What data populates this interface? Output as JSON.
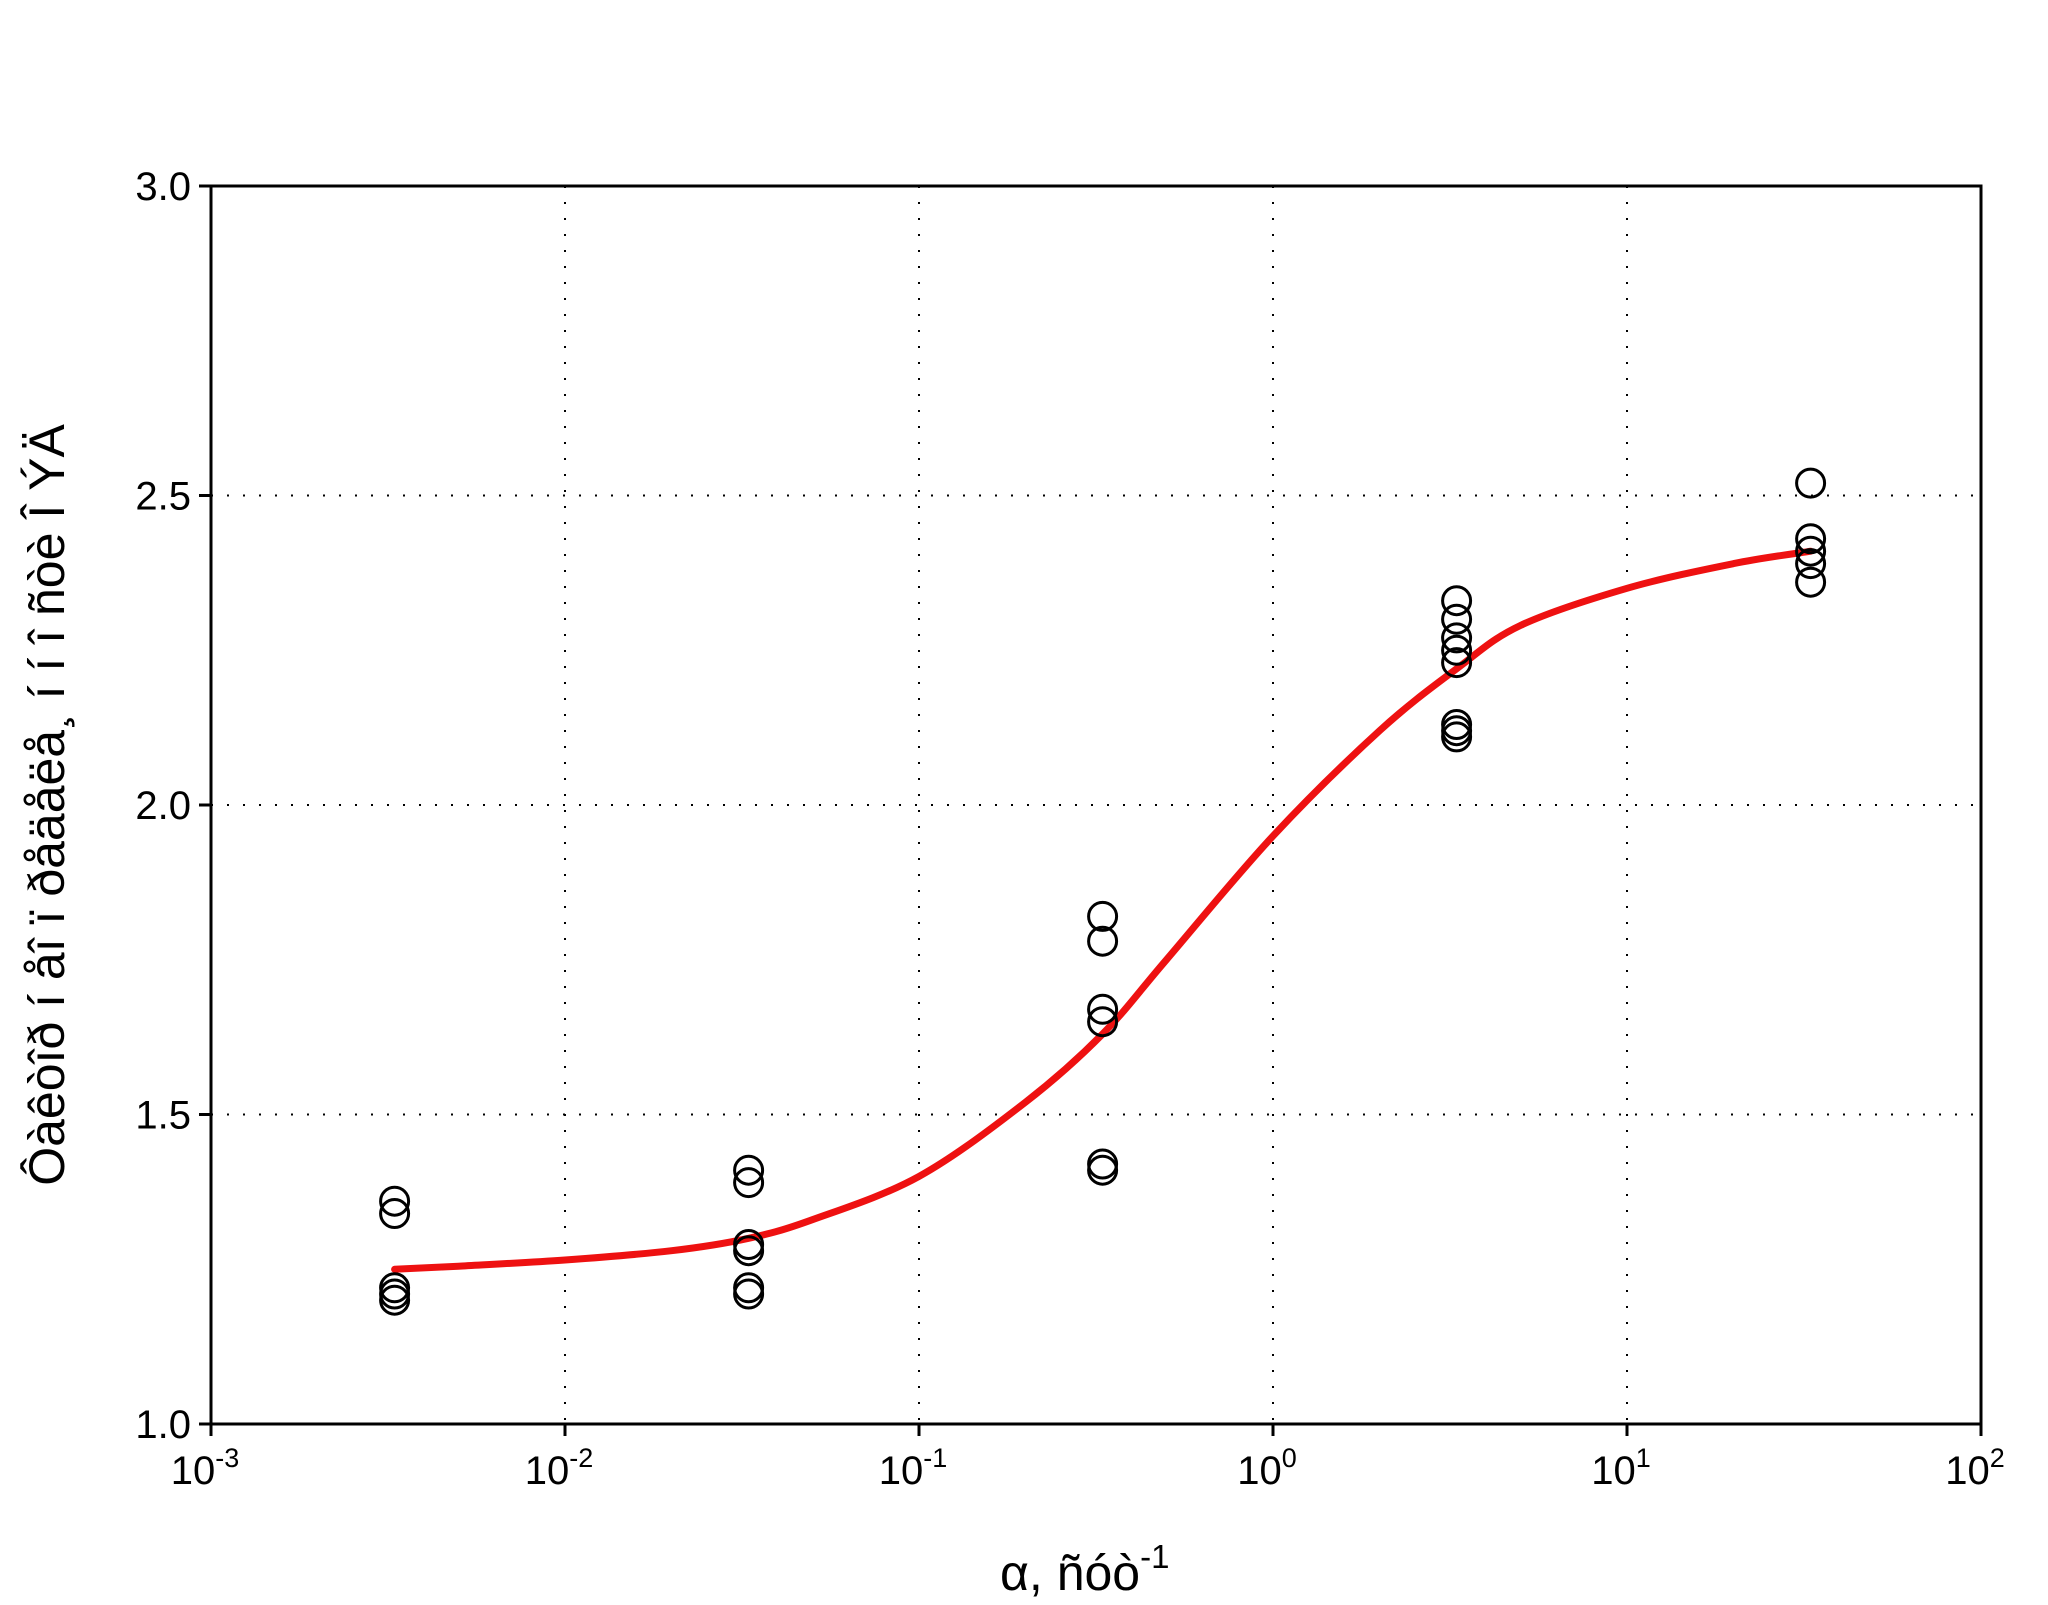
{
  "chart_data": {
    "type": "scatter",
    "x_scale": "log",
    "xlim": [
      0.001,
      100
    ],
    "ylim": [
      1.0,
      3.0
    ],
    "grid": true,
    "xlabel": {
      "base": "α, ñóò",
      "exponent": "-1"
    },
    "ylabel": "Ôàêòîð í åî ï ðåäåëå¸ í í î ñòè Î ÝÄ",
    "x_ticks": [
      {
        "base": "10",
        "exponent": "-3",
        "value": 0.001
      },
      {
        "base": "10",
        "exponent": "-2",
        "value": 0.01
      },
      {
        "base": "10",
        "exponent": "-1",
        "value": 0.1
      },
      {
        "base": "10",
        "exponent": "0",
        "value": 1
      },
      {
        "base": "10",
        "exponent": "1",
        "value": 10
      },
      {
        "base": "10",
        "exponent": "2",
        "value": 100
      }
    ],
    "y_ticks": [
      {
        "label": "1.0",
        "value": 1.0
      },
      {
        "label": "1.5",
        "value": 1.5
      },
      {
        "label": "2.0",
        "value": 2.0
      },
      {
        "label": "2.5",
        "value": 2.5
      },
      {
        "label": "3.0",
        "value": 3.0
      }
    ],
    "points": [
      {
        "x": 0.0033,
        "y": 1.36
      },
      {
        "x": 0.0033,
        "y": 1.34
      },
      {
        "x": 0.0033,
        "y": 1.22
      },
      {
        "x": 0.0033,
        "y": 1.21
      },
      {
        "x": 0.0033,
        "y": 1.2
      },
      {
        "x": 0.033,
        "y": 1.41
      },
      {
        "x": 0.033,
        "y": 1.39
      },
      {
        "x": 0.033,
        "y": 1.29
      },
      {
        "x": 0.033,
        "y": 1.28
      },
      {
        "x": 0.033,
        "y": 1.22
      },
      {
        "x": 0.033,
        "y": 1.21
      },
      {
        "x": 0.33,
        "y": 1.82
      },
      {
        "x": 0.33,
        "y": 1.78
      },
      {
        "x": 0.33,
        "y": 1.67
      },
      {
        "x": 0.33,
        "y": 1.65
      },
      {
        "x": 0.33,
        "y": 1.42
      },
      {
        "x": 0.33,
        "y": 1.41
      },
      {
        "x": 3.3,
        "y": 2.33
      },
      {
        "x": 3.3,
        "y": 2.3
      },
      {
        "x": 3.3,
        "y": 2.27
      },
      {
        "x": 3.3,
        "y": 2.25
      },
      {
        "x": 3.3,
        "y": 2.23
      },
      {
        "x": 3.3,
        "y": 2.13
      },
      {
        "x": 3.3,
        "y": 2.12
      },
      {
        "x": 3.3,
        "y": 2.11
      },
      {
        "x": 33,
        "y": 2.52
      },
      {
        "x": 33,
        "y": 2.43
      },
      {
        "x": 33,
        "y": 2.41
      },
      {
        "x": 33,
        "y": 2.39
      },
      {
        "x": 33,
        "y": 2.36
      }
    ],
    "fit_curve": {
      "color": "#ee1111",
      "x": [
        0.0033,
        0.005,
        0.01,
        0.02,
        0.033,
        0.05,
        0.1,
        0.2,
        0.33,
        0.5,
        1.0,
        2.0,
        3.3,
        5.0,
        10,
        20,
        33
      ],
      "y": [
        1.25,
        1.255,
        1.265,
        1.28,
        1.3,
        1.33,
        1.4,
        1.52,
        1.63,
        1.75,
        1.95,
        2.12,
        2.22,
        2.29,
        2.35,
        2.39,
        2.41
      ]
    }
  }
}
